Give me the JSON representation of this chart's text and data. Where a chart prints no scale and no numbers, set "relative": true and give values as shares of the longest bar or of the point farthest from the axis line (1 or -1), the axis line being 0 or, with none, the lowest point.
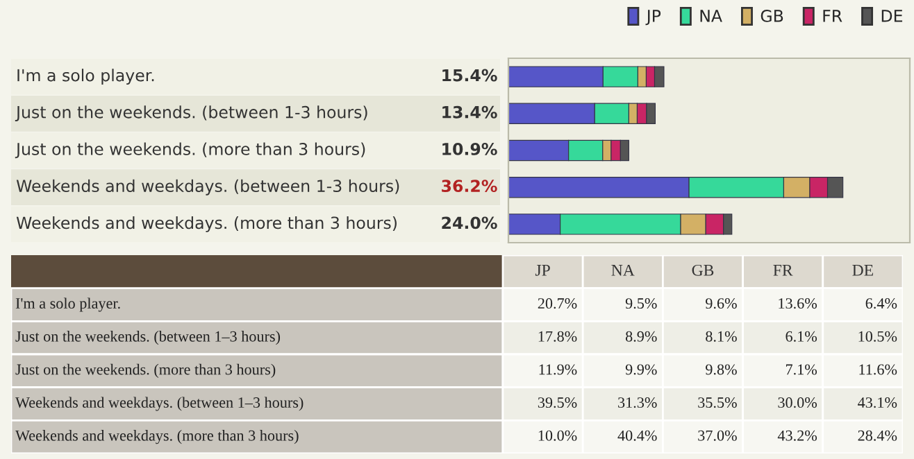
{
  "chart_data": [
    {
      "type": "bar",
      "orientation": "horizontal",
      "stacked": true,
      "relative": true,
      "legend": "top right",
      "categories": [
        "I'm a solo player.",
        "Just on the weekends. (between 1-3 hours)",
        "Just on the weekends. (more than 3 hours)",
        "Weekends and weekdays. (between 1-3 hours)",
        "Weekends and weekdays. (more than 3 hours)"
      ],
      "annotations": [
        "15.4%",
        "13.4%",
        "10.9%",
        "36.2%",
        "24.0%"
      ],
      "series": [
        {
          "name": "JP",
          "color": "#5656c8",
          "values": [
            0.283,
            0.258,
            0.18,
            0.54,
            0.155
          ]
        },
        {
          "name": "NA",
          "color": "#36d99a",
          "values": [
            0.104,
            0.102,
            0.102,
            0.283,
            0.36
          ]
        },
        {
          "name": "GB",
          "color": "#d3b065",
          "values": [
            0.025,
            0.025,
            0.025,
            0.078,
            0.075
          ]
        },
        {
          "name": "FR",
          "color": "#c92565",
          "values": [
            0.025,
            0.028,
            0.028,
            0.053,
            0.053
          ]
        },
        {
          "name": "DE",
          "color": "#555555",
          "values": [
            0.028,
            0.026,
            0.025,
            0.046,
            0.025
          ]
        }
      ]
    },
    {
      "type": "other",
      "categories": [
        "JP",
        "NA",
        "GB",
        "FR",
        "DE"
      ],
      "y_categories": [
        "I'm a solo player.",
        "Just on the weekends. (between 1–3 hours)",
        "Just on the weekends. (more than 3 hours)",
        "Weekends and weekdays. (between 1–3 hours)",
        "Weekends and weekdays. (more than 3 hours)"
      ],
      "cell_labels": [
        [
          "20.7%",
          "9.5%",
          "9.6%",
          "13.6%",
          "6.4%"
        ],
        [
          "17.8%",
          "8.9%",
          "8.1%",
          "6.1%",
          "10.5%"
        ],
        [
          "11.9%",
          "9.9%",
          "9.8%",
          "7.1%",
          "11.6%"
        ],
        [
          "39.5%",
          "31.3%",
          "35.5%",
          "30.0%",
          "43.1%"
        ],
        [
          "10.0%",
          "40.4%",
          "37.0%",
          "43.2%",
          "28.4%"
        ]
      ]
    }
  ]
}
